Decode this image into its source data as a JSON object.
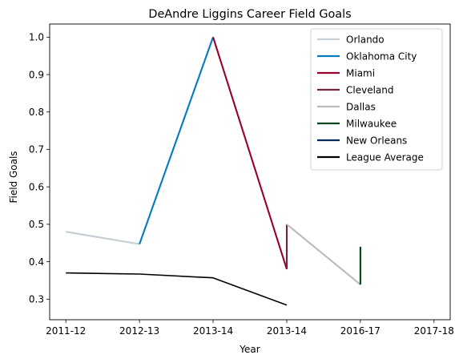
{
  "chart_data": {
    "type": "line",
    "title": "DeAndre Liggins Career Field Goals",
    "xlabel": "Year",
    "ylabel": "Field Goals",
    "x_ticks": [
      {
        "pos": 0,
        "label": "2011-12"
      },
      {
        "pos": 1,
        "label": "2012-13"
      },
      {
        "pos": 2,
        "label": "2013-14"
      },
      {
        "pos": 3,
        "label": "2013-14"
      },
      {
        "pos": 4,
        "label": "2016-17"
      },
      {
        "pos": 5,
        "label": "2017-18"
      }
    ],
    "xlim": [
      -0.22,
      5.22
    ],
    "ylim": [
      0.245,
      1.035
    ],
    "y_ticks": [
      0.3,
      0.4,
      0.5,
      0.6,
      0.7,
      0.8,
      0.9,
      1.0
    ],
    "legend_position": "top-right",
    "grid": false,
    "series": [
      {
        "name": "Orlando",
        "color": "#c4ced4",
        "points": [
          [
            0,
            0.48
          ],
          [
            1.0,
            0.447
          ]
        ]
      },
      {
        "name": "Oklahoma City",
        "color": "#007ac1",
        "points": [
          [
            1.0,
            0.447
          ],
          [
            2.0,
            1.0
          ]
        ]
      },
      {
        "name": "Miami",
        "color": "#98002e",
        "points": [
          [
            2.0,
            1.0
          ],
          [
            3.0,
            0.38
          ]
        ]
      },
      {
        "name": "Cleveland",
        "color": "#6f263d",
        "points": [
          [
            3.0,
            0.38
          ],
          [
            3.0,
            0.5
          ]
        ]
      },
      {
        "name": "Dallas",
        "color": "#bbbbbb",
        "points": [
          [
            3.0,
            0.5
          ],
          [
            4.0,
            0.339
          ]
        ]
      },
      {
        "name": "Milwaukee",
        "color": "#00471b",
        "points": [
          [
            4.0,
            0.339
          ],
          [
            4.0,
            0.44
          ]
        ]
      },
      {
        "name": "New Orleans",
        "color": "#002b5c",
        "points": []
      },
      {
        "name": "League Average",
        "color": "#000000",
        "points": [
          [
            0,
            0.37
          ],
          [
            1.0,
            0.367
          ],
          [
            2.0,
            0.357
          ],
          [
            3.0,
            0.284
          ]
        ]
      }
    ]
  }
}
